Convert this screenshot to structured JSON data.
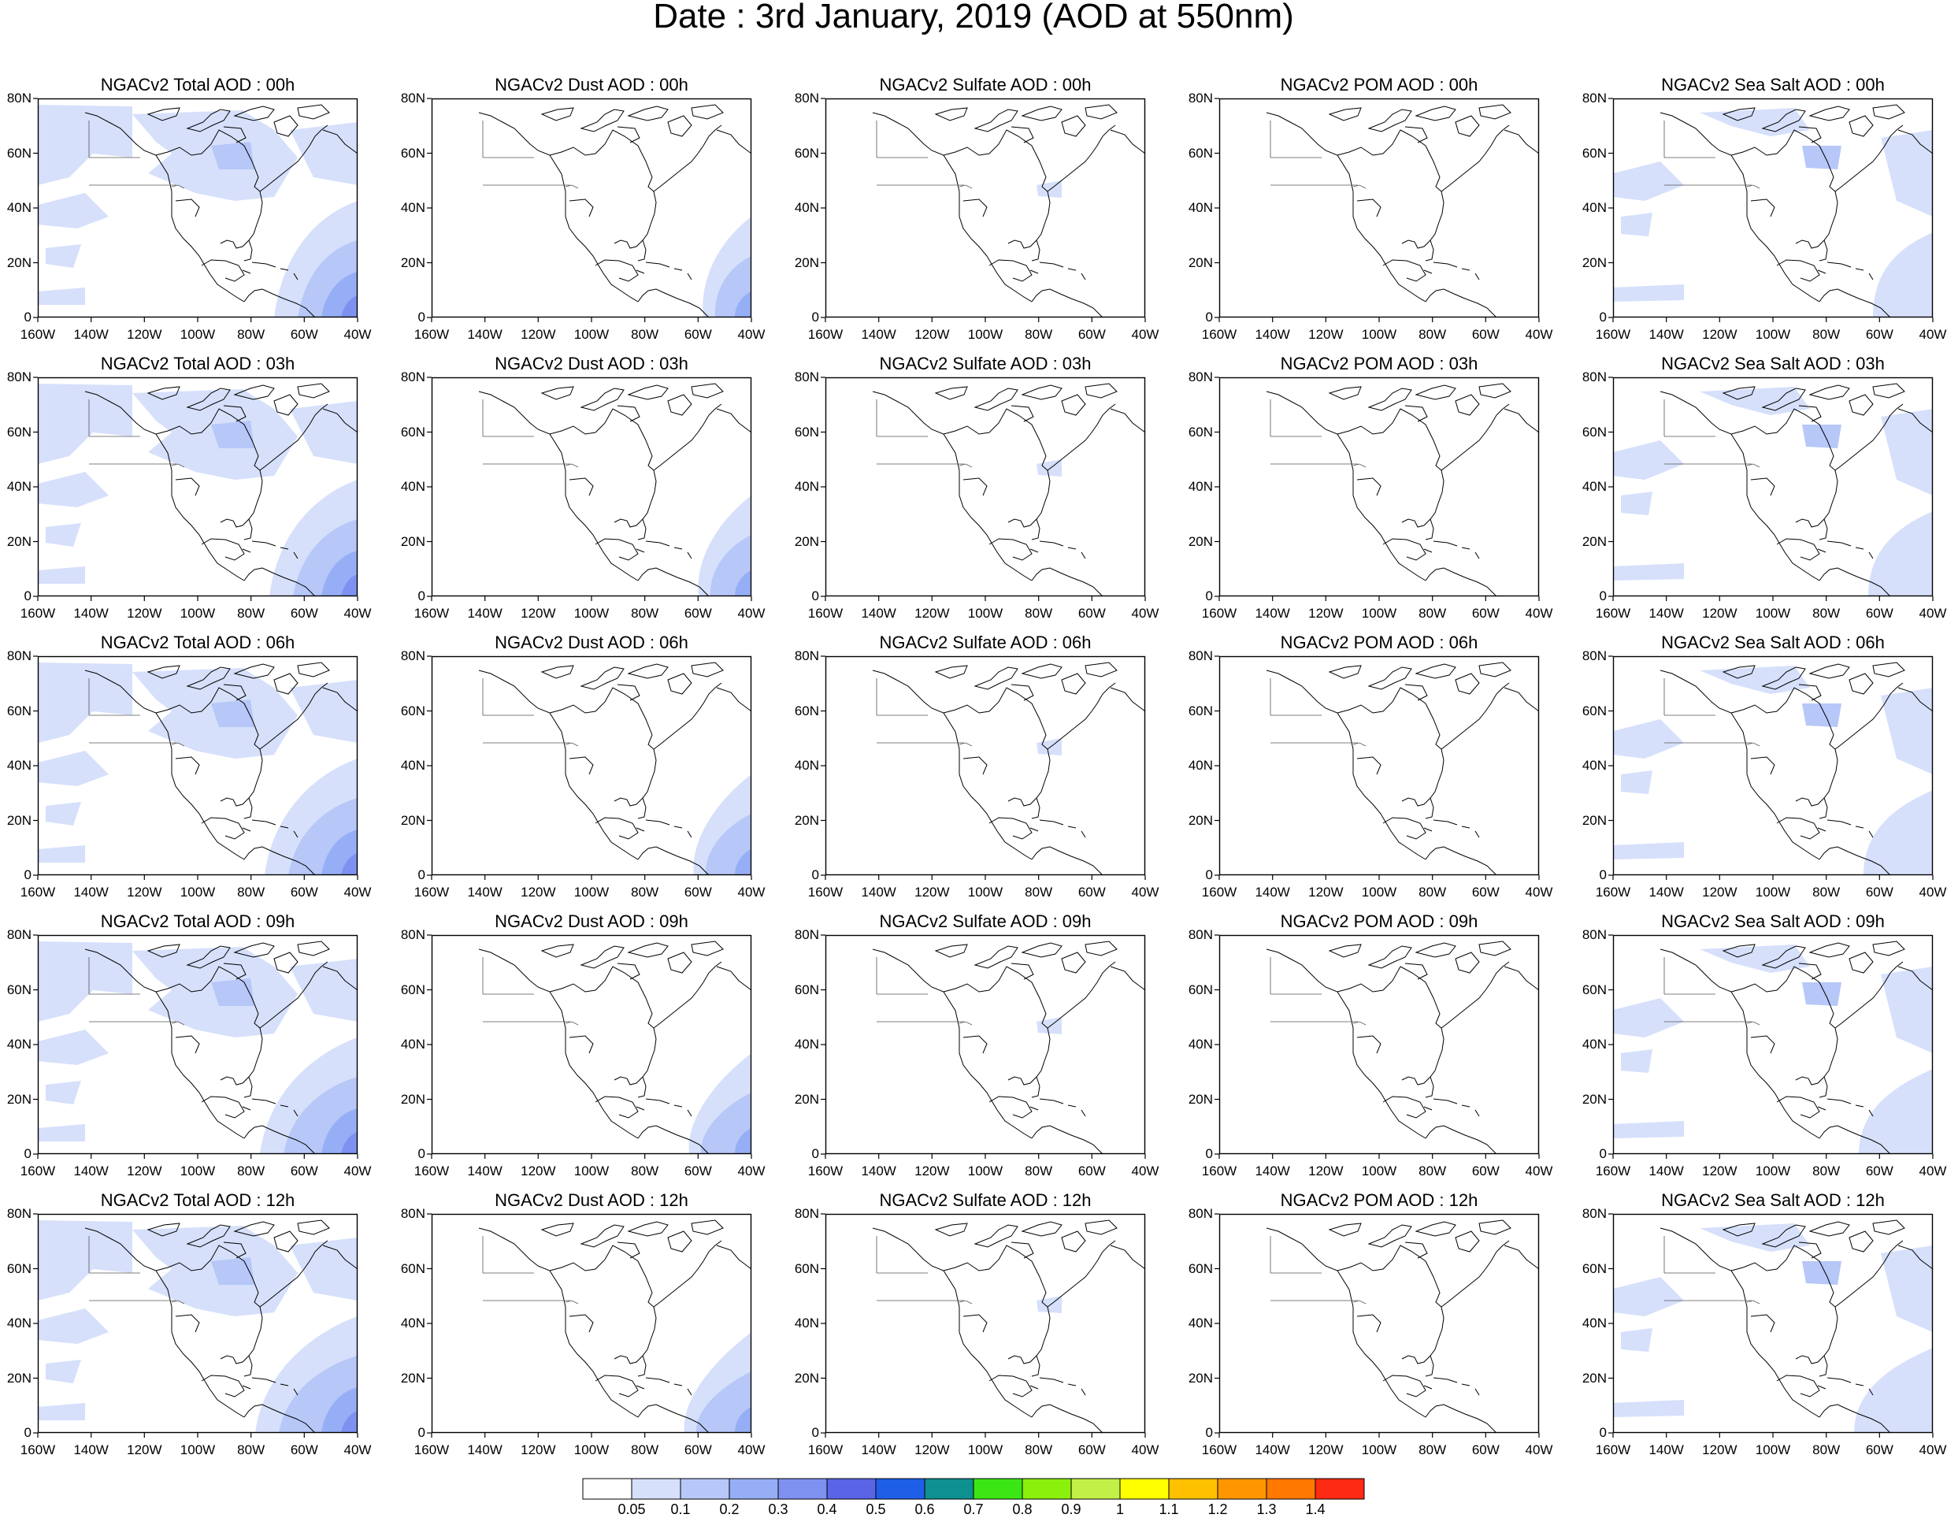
{
  "title": "Date : 3rd January, 2019 (AOD at 550nm)",
  "y_ticks": [
    "80N",
    "60N",
    "40N",
    "20N",
    "0"
  ],
  "x_ticks": [
    "160W",
    "140W",
    "120W",
    "100W",
    "80W",
    "60W",
    "40W"
  ],
  "panels": [
    [
      {
        "title": "NGACv2 Total AOD : 00h",
        "species": "total"
      },
      {
        "title": "NGACv2 Dust AOD : 00h",
        "species": "dust"
      },
      {
        "title": "NGACv2 Sulfate AOD : 00h",
        "species": "sulfate"
      },
      {
        "title": "NGACv2 POM AOD : 00h",
        "species": "pom"
      },
      {
        "title": "NGACv2 Sea Salt AOD : 00h",
        "species": "seasalt"
      }
    ],
    [
      {
        "title": "NGACv2 Total AOD : 03h",
        "species": "total"
      },
      {
        "title": "NGACv2 Dust AOD : 03h",
        "species": "dust"
      },
      {
        "title": "NGACv2 Sulfate AOD : 03h",
        "species": "sulfate"
      },
      {
        "title": "NGACv2 POM AOD : 03h",
        "species": "pom"
      },
      {
        "title": "NGACv2 Sea Salt AOD : 03h",
        "species": "seasalt"
      }
    ],
    [
      {
        "title": "NGACv2 Total AOD : 06h",
        "species": "total"
      },
      {
        "title": "NGACv2 Dust AOD : 06h",
        "species": "dust"
      },
      {
        "title": "NGACv2 Sulfate AOD : 06h",
        "species": "sulfate"
      },
      {
        "title": "NGACv2 POM AOD : 06h",
        "species": "pom"
      },
      {
        "title": "NGACv2 Sea Salt AOD : 06h",
        "species": "seasalt"
      }
    ],
    [
      {
        "title": "NGACv2 Total AOD : 09h",
        "species": "total"
      },
      {
        "title": "NGACv2 Dust AOD : 09h",
        "species": "dust"
      },
      {
        "title": "NGACv2 Sulfate AOD : 09h",
        "species": "sulfate"
      },
      {
        "title": "NGACv2 POM AOD : 09h",
        "species": "pom"
      },
      {
        "title": "NGACv2 Sea Salt  AOD : 09h",
        "species": "seasalt"
      }
    ],
    [
      {
        "title": "NGACv2 Total AOD  : 12h",
        "species": "total"
      },
      {
        "title": "NGACv2 Dust AOD : 12h",
        "species": "dust"
      },
      {
        "title": "NGACv2 Sulfate AOD : 12h",
        "species": "sulfate"
      },
      {
        "title": "NGACv2 POM  AOD : 12h",
        "species": "pom"
      },
      {
        "title": "NGACv2 Sea Salt  AOD : 12h",
        "species": "seasalt"
      }
    ]
  ],
  "colorbar": {
    "labels": [
      "0.05",
      "0.1",
      "0.2",
      "0.3",
      "0.4",
      "0.5",
      "0.6",
      "0.7",
      "0.8",
      "0.9",
      "1",
      "1.1",
      "1.2",
      "1.3",
      "1.4"
    ],
    "colors": [
      "#ffffff",
      "#d6e0fb",
      "#b6c7f8",
      "#96aef5",
      "#7f91f0",
      "#5a64e6",
      "#1f5fe8",
      "#0e9090",
      "#3ce614",
      "#8af00c",
      "#c3f046",
      "#ffff00",
      "#ffc000",
      "#ff9600",
      "#ff7800",
      "#ff2a14"
    ]
  }
}
